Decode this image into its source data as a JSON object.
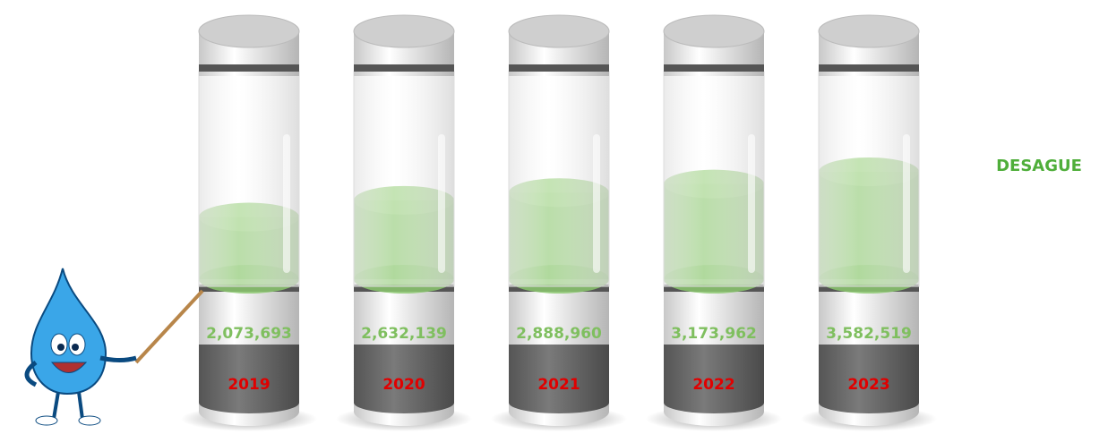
{
  "chart_data": {
    "type": "bar",
    "categories": [
      "2019",
      "2020",
      "2021",
      "2022",
      "2023"
    ],
    "series": [
      {
        "name": "DESAGUE",
        "color": "#8cc870",
        "values": [
          2073693,
          2632139,
          2888960,
          3173962,
          3582519
        ],
        "value_labels": [
          "2,073,693",
          "2,632,139",
          "2,888,960",
          "3,173,962",
          "3,582,519"
        ]
      }
    ],
    "legend": "right"
  }
}
